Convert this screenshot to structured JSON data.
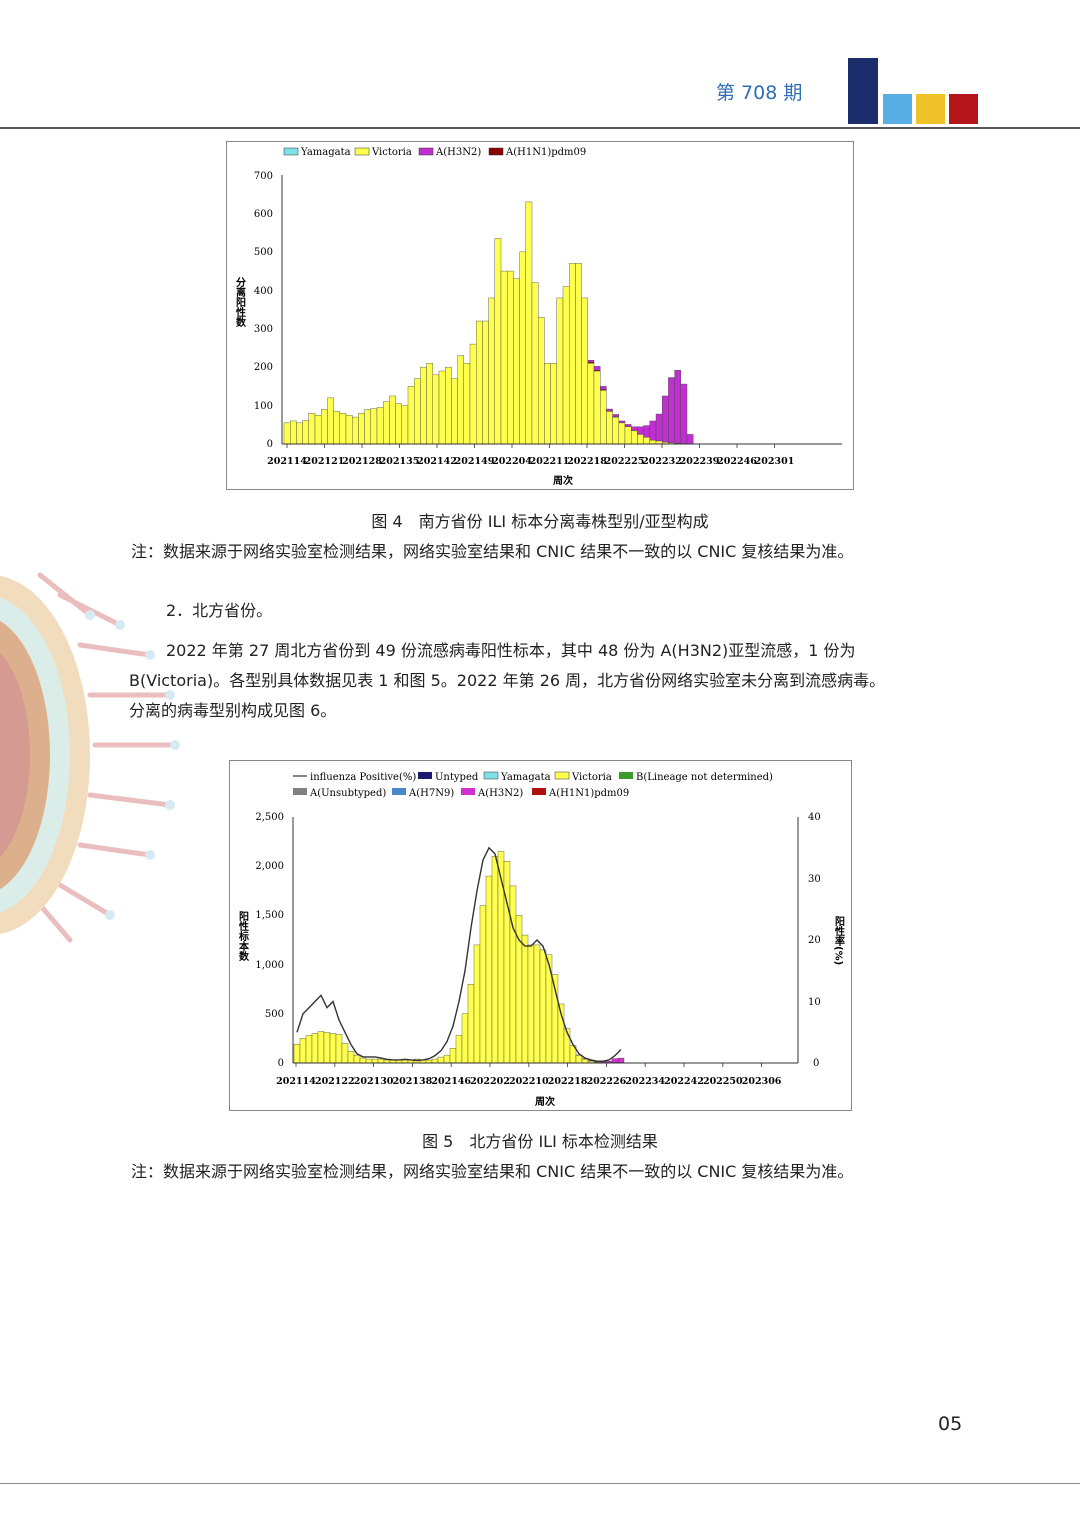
{
  "header": {
    "issue": "第 708 期",
    "colors": {
      "navy": "#1b2d6b",
      "lightblue": "#5aaee6",
      "yellow": "#efc22a",
      "red": "#b3151b"
    }
  },
  "figure4": {
    "caption": "图 4　南方省份 ILI 标本分离毒株型别/亚型构成",
    "note": "注：数据来源于网络实验室检测结果，网络实验室结果和 CNIC 结果不一致的以 CNIC 复核结果为准。"
  },
  "section2": {
    "heading": "2．北方省份。",
    "para_lines": [
      "2022 年第 27 周北方省份到 49 份流感病毒阳性标本，其中 48 份为 A(H3N2)亚型流感，1 份为",
      "B(Victoria)。各型别具体数据见表 1 和图 5。2022 年第 26 周，北方省份网络实验室未分离到流感病毒。",
      "分离的病毒型别构成见图 6。"
    ]
  },
  "figure5": {
    "caption": "图 5　北方省份 ILI 标本检测结果",
    "note": "注：数据来源于网络实验室检测结果，网络实验室结果和 CNIC 结果不一致的以 CNIC 复核结果为准。"
  },
  "page_number": "05",
  "chart_data": [
    {
      "type": "bar",
      "stacked": true,
      "legend": [
        "Yamagata",
        "Victoria",
        "A(H3N2)",
        "A(H1N1)pdm09"
      ],
      "legend_placement": "top",
      "colors": {
        "Yamagata": "#7fe0e8",
        "Victoria": "#ffff4d",
        "A(H3N2)": "#c030d0",
        "A(H1N1)pdm09": "#8b0000"
      },
      "ylabel": "分离阳性数",
      "xlabel": "周次",
      "ylim": [
        0,
        700
      ],
      "yticks": [
        "700",
        "600",
        "500",
        "400",
        "300",
        "200",
        "100",
        "0"
      ],
      "xticks": [
        "202114",
        "202121",
        "202128",
        "202135",
        "202142",
        "202149",
        "202204",
        "202211",
        "202218",
        "202225",
        "202232",
        "202239",
        "202246",
        "202301"
      ],
      "victoria": [
        55,
        60,
        55,
        62,
        80,
        75,
        90,
        120,
        85,
        80,
        75,
        70,
        80,
        90,
        92,
        95,
        110,
        125,
        105,
        100,
        150,
        170,
        200,
        210,
        180,
        190,
        200,
        170,
        230,
        210,
        260,
        320,
        320,
        380,
        535,
        450,
        450,
        430,
        500,
        630,
        420,
        330,
        210,
        210,
        380,
        410,
        470,
        470,
        380,
        210,
        190,
        140,
        85,
        70,
        55,
        45,
        35,
        25,
        18,
        10,
        8,
        5,
        3,
        2,
        1,
        0
      ],
      "h3n2": [
        0,
        0,
        0,
        0,
        0,
        0,
        0,
        0,
        0,
        0,
        0,
        0,
        0,
        0,
        0,
        0,
        0,
        0,
        0,
        0,
        0,
        0,
        0,
        0,
        0,
        0,
        0,
        0,
        0,
        0,
        0,
        0,
        0,
        0,
        0,
        0,
        0,
        0,
        0,
        0,
        0,
        0,
        0,
        0,
        0,
        0,
        0,
        0,
        0,
        5,
        10,
        8,
        5,
        6,
        5,
        6,
        10,
        20,
        30,
        50,
        70,
        120,
        170,
        190,
        155,
        25
      ],
      "h1n1": [
        0,
        0,
        0,
        0,
        0,
        0,
        0,
        0,
        0,
        0,
        0,
        0,
        0,
        0,
        0,
        0,
        0,
        0,
        0,
        0,
        0,
        0,
        0,
        0,
        0,
        0,
        0,
        0,
        0,
        0,
        0,
        0,
        0,
        0,
        0,
        0,
        0,
        0,
        0,
        0,
        0,
        0,
        0,
        0,
        0,
        0,
        0,
        0,
        0,
        3,
        2,
        2,
        1,
        1,
        0,
        0,
        0,
        0,
        0,
        0,
        0,
        0,
        0,
        0,
        0,
        0
      ]
    },
    {
      "type": "bar",
      "stacked": true,
      "legend": [
        "influenza Positive(%)",
        "Untyped",
        "Yamagata",
        "Victoria",
        "B(Lineage not determined)",
        "A(Unsubtyped)",
        "A(H7N9)",
        "A(H3N2)",
        "A(H1N1)pdm09"
      ],
      "legend_placement": "top",
      "colors": {
        "Untyped": "#1a1a6e",
        "Yamagata": "#7fe0e8",
        "Victoria": "#ffff4d",
        "B(Lineage not determined)": "#3a9a2a",
        "A(Unsubtyped)": "#808080",
        "A(H7N9)": "#4a86c8",
        "A(H3N2)": "#d030d0",
        "A(H1N1)pdm09": "#b01010"
      },
      "ylabel": "阳性标本数",
      "y2label": "阳性率(%)",
      "xlabel": "周次",
      "ylim": [
        0,
        2500
      ],
      "y2lim": [
        0,
        40
      ],
      "yticks": [
        "2,500",
        "2,000",
        "1,500",
        "1,000",
        "500",
        "0"
      ],
      "y2ticks": [
        "40",
        "30",
        "20",
        "10",
        "0"
      ],
      "xticks": [
        "202114",
        "202122",
        "202130",
        "202138",
        "202146",
        "202202",
        "202210",
        "202218",
        "202226",
        "202234",
        "202242",
        "202250",
        "202306"
      ],
      "victoria": [
        190,
        250,
        280,
        300,
        320,
        310,
        300,
        290,
        200,
        120,
        80,
        50,
        40,
        40,
        40,
        30,
        30,
        30,
        30,
        30,
        40,
        30,
        30,
        40,
        60,
        80,
        150,
        280,
        500,
        800,
        1200,
        1600,
        1900,
        2100,
        2150,
        2050,
        1800,
        1500,
        1300,
        1200,
        1200,
        1150,
        1100,
        900,
        600,
        350,
        180,
        80,
        40,
        20,
        10,
        5,
        5,
        5,
        5
      ],
      "h3n2": [
        0,
        0,
        0,
        0,
        0,
        0,
        0,
        0,
        0,
        0,
        0,
        0,
        0,
        0,
        0,
        0,
        0,
        0,
        0,
        0,
        0,
        0,
        0,
        0,
        0,
        0,
        0,
        0,
        0,
        0,
        0,
        0,
        0,
        0,
        0,
        0,
        0,
        0,
        0,
        0,
        0,
        0,
        0,
        0,
        0,
        0,
        0,
        2,
        3,
        5,
        5,
        8,
        15,
        40,
        45
      ],
      "positive_rate": [
        5,
        8,
        9,
        10,
        11,
        9,
        10,
        7,
        5,
        3,
        1.5,
        1,
        1,
        1,
        0.8,
        0.6,
        0.5,
        0.5,
        0.6,
        0.5,
        0.4,
        0.5,
        0.7,
        1.2,
        2,
        3.5,
        6,
        10,
        15,
        22,
        28,
        33,
        35,
        34,
        30,
        26,
        22,
        20,
        19,
        19,
        20,
        19,
        16,
        12,
        8,
        5,
        3,
        1.5,
        0.8,
        0.5,
        0.3,
        0.3,
        0.5,
        1.2,
        2.2
      ]
    }
  ]
}
